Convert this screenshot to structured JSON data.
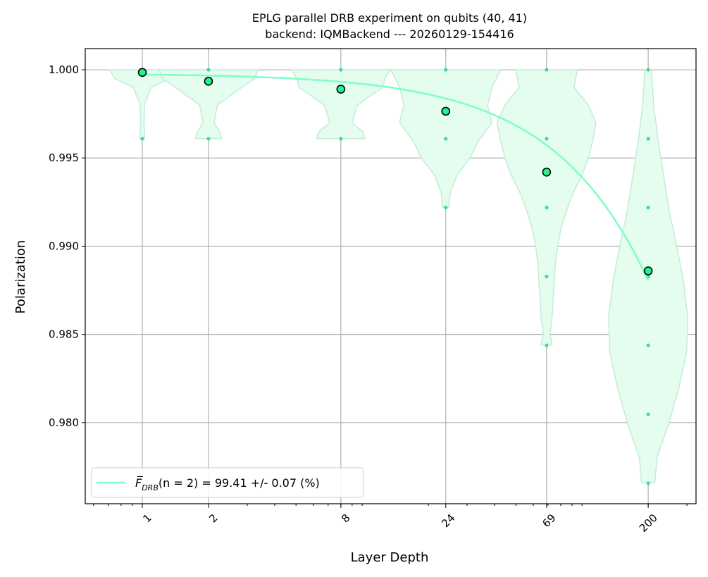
{
  "chart_data": {
    "type": "scatter",
    "title_line1": "EPLG parallel DRB experiment on qubits (40, 41)",
    "title_line2": "backend: IQMBackend --- 20260129-154416",
    "xlabel": "Layer Depth",
    "ylabel": "Polarization",
    "x_scale": "log",
    "xlim": [
      0.55,
      330
    ],
    "ylim": [
      0.9754,
      1.0012
    ],
    "x_ticks": [
      1,
      2,
      8,
      24,
      69,
      200
    ],
    "y_ticks": [
      1.0,
      0.995,
      0.99,
      0.985,
      0.98
    ],
    "y_tick_labels": [
      "1.000",
      "0.995",
      "0.990",
      "0.985",
      "0.980"
    ],
    "grid": true,
    "legend_position": "lower-left",
    "legend_label_main": "F̅",
    "legend_label_sub": "DRB",
    "legend_label_rest": "(n = 2) = 99.41 +/- 0.07 (%)",
    "colors": {
      "fit_line": "#7effc4",
      "mean_marker": "#1ef58a",
      "violin_fill": "#e4fdef",
      "violin_edge": "#c3ecd6",
      "samples": "#3fd99a",
      "grid": "#b0b0b0"
    },
    "means": [
      {
        "x": 1,
        "y": 0.99985
      },
      {
        "x": 2,
        "y": 0.99935
      },
      {
        "x": 8,
        "y": 0.9989
      },
      {
        "x": 24,
        "y": 0.99765
      },
      {
        "x": 69,
        "y": 0.9942
      },
      {
        "x": 200,
        "y": 0.9886
      }
    ],
    "fit_curve": {
      "A": 1.0,
      "p": 0.999941,
      "x_range": [
        1,
        200
      ]
    },
    "samples": [
      {
        "x": 1,
        "ys": [
          1.0,
          0.99609
        ]
      },
      {
        "x": 2,
        "ys": [
          1.0,
          0.99609
        ]
      },
      {
        "x": 8,
        "ys": [
          1.0,
          0.99609
        ]
      },
      {
        "x": 24,
        "ys": [
          1.0,
          0.99609,
          0.99219
        ]
      },
      {
        "x": 69,
        "ys": [
          1.0,
          0.99609,
          0.99219,
          0.98828,
          0.98438
        ]
      },
      {
        "x": 200,
        "ys": [
          1.0,
          0.99609,
          0.99219,
          0.98828,
          0.98438,
          0.98047,
          0.97656
        ]
      }
    ],
    "violins": [
      {
        "x": 1,
        "profile": [
          [
            1.0,
            0.3
          ],
          [
            0.9995,
            0.25
          ],
          [
            0.999,
            0.08
          ],
          [
            0.998,
            0.02
          ],
          [
            0.997,
            0.015
          ],
          [
            0.9965,
            0.02
          ],
          [
            0.9961,
            0.02
          ]
        ]
      },
      {
        "x": 2,
        "profile": [
          [
            1.0,
            0.45
          ],
          [
            0.9995,
            0.42
          ],
          [
            0.999,
            0.3
          ],
          [
            0.998,
            0.08
          ],
          [
            0.997,
            0.05
          ],
          [
            0.9965,
            0.1
          ],
          [
            0.9961,
            0.12
          ]
        ]
      },
      {
        "x": 8,
        "profile": [
          [
            1.0,
            0.45
          ],
          [
            0.9995,
            0.4
          ],
          [
            0.999,
            0.38
          ],
          [
            0.998,
            0.15
          ],
          [
            0.997,
            0.1
          ],
          [
            0.9965,
            0.2
          ],
          [
            0.9961,
            0.22
          ]
        ]
      },
      {
        "x": 24,
        "profile": [
          [
            1.0,
            0.5
          ],
          [
            0.999,
            0.42
          ],
          [
            0.998,
            0.38
          ],
          [
            0.997,
            0.42
          ],
          [
            0.996,
            0.3
          ],
          [
            0.995,
            0.22
          ],
          [
            0.994,
            0.1
          ],
          [
            0.993,
            0.04
          ],
          [
            0.9922,
            0.03
          ]
        ]
      },
      {
        "x": 69,
        "profile": [
          [
            1.0,
            0.28
          ],
          [
            0.999,
            0.25
          ],
          [
            0.998,
            0.38
          ],
          [
            0.997,
            0.45
          ],
          [
            0.996,
            0.42
          ],
          [
            0.995,
            0.38
          ],
          [
            0.994,
            0.32
          ],
          [
            0.993,
            0.24
          ],
          [
            0.992,
            0.18
          ],
          [
            0.991,
            0.13
          ],
          [
            0.99,
            0.1
          ],
          [
            0.989,
            0.08
          ],
          [
            0.988,
            0.07
          ],
          [
            0.987,
            0.06
          ],
          [
            0.986,
            0.05
          ],
          [
            0.985,
            0.03
          ],
          [
            0.9844,
            0.05
          ]
        ]
      },
      {
        "x": 200,
        "profile": [
          [
            1.0,
            0.03
          ],
          [
            0.998,
            0.05
          ],
          [
            0.996,
            0.09
          ],
          [
            0.994,
            0.14
          ],
          [
            0.992,
            0.19
          ],
          [
            0.99,
            0.26
          ],
          [
            0.988,
            0.32
          ],
          [
            0.986,
            0.36
          ],
          [
            0.984,
            0.35
          ],
          [
            0.982,
            0.28
          ],
          [
            0.98,
            0.19
          ],
          [
            0.978,
            0.08
          ],
          [
            0.9766,
            0.06
          ]
        ]
      }
    ]
  }
}
